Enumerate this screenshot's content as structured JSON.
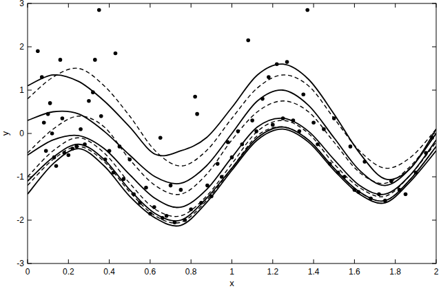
{
  "chart_data": {
    "type": "scatter",
    "x_label": "x",
    "y_label": "y",
    "xlim": [
      0,
      2
    ],
    "ylim": [
      -3,
      3
    ],
    "xticks": [
      0,
      0.2,
      0.4,
      0.6,
      0.8,
      1,
      1.2,
      1.4,
      1.6,
      1.8,
      2
    ],
    "yticks": [
      -3,
      -2,
      -1,
      0,
      1,
      2,
      3
    ],
    "grid": false,
    "series": [
      {
        "type": "scatter",
        "marker": "circle",
        "color": "#000000",
        "x": [
          0.05,
          0.07,
          0.08,
          0.09,
          0.1,
          0.11,
          0.12,
          0.13,
          0.14,
          0.16,
          0.17,
          0.18,
          0.2,
          0.22,
          0.24,
          0.26,
          0.28,
          0.3,
          0.32,
          0.33,
          0.35,
          0.36,
          0.38,
          0.4,
          0.42,
          0.43,
          0.45,
          0.47,
          0.5,
          0.52,
          0.55,
          0.58,
          0.6,
          0.62,
          0.65,
          0.66,
          0.68,
          0.7,
          0.72,
          0.75,
          0.77,
          0.8,
          0.82,
          0.83,
          0.85,
          0.88,
          0.9,
          0.93,
          0.95,
          0.98,
          1.0,
          1.03,
          1.05,
          1.08,
          1.1,
          1.12,
          1.15,
          1.18,
          1.2,
          1.22,
          1.25,
          1.27,
          1.3,
          1.33,
          1.35,
          1.37,
          1.4,
          1.42,
          1.45,
          1.48,
          1.5,
          1.52,
          1.55,
          1.58,
          1.6,
          1.62,
          1.65,
          1.68,
          1.72,
          1.75,
          1.78,
          1.82,
          1.85,
          1.9,
          1.95,
          1.98
        ],
        "values": [
          1.9,
          1.3,
          0.25,
          -0.4,
          0.45,
          0.7,
          0.0,
          -0.55,
          -0.75,
          1.7,
          0.35,
          -0.45,
          -0.5,
          -0.35,
          -0.3,
          0.1,
          -0.25,
          0.75,
          0.95,
          1.7,
          2.85,
          0.4,
          -0.6,
          -0.4,
          -0.9,
          1.85,
          -0.3,
          -1.05,
          -0.6,
          -1.4,
          -1.6,
          -1.25,
          -1.85,
          -1.7,
          -0.1,
          -1.95,
          -1.9,
          -1.2,
          -2.05,
          -1.3,
          -2.0,
          -1.75,
          0.85,
          0.45,
          -1.6,
          -1.2,
          -1.45,
          -0.7,
          -1.0,
          -0.2,
          -0.55,
          0.05,
          -0.25,
          2.15,
          0.3,
          0.05,
          0.8,
          1.3,
          0.2,
          1.6,
          0.35,
          1.65,
          0.3,
          0.05,
          0.9,
          2.85,
          0.25,
          -0.25,
          0.1,
          -0.7,
          0.35,
          -0.9,
          -1.0,
          -0.3,
          -1.3,
          -1.35,
          -0.65,
          -1.5,
          -1.4,
          -1.55,
          -1.1,
          -1.3,
          -1.4,
          -0.9,
          -0.45,
          -0.1
        ]
      },
      {
        "type": "line",
        "line_style": "solid",
        "color": "#000000",
        "x": [
          0,
          0.125,
          0.25,
          0.375,
          0.5,
          0.625,
          0.75,
          0.875,
          1,
          1.125,
          1.25,
          1.375,
          1.5,
          1.625,
          1.75,
          1.875,
          2
        ],
        "values": [
          1.1,
          1.35,
          1.2,
          0.75,
          0.15,
          -0.48,
          -0.4,
          -0.1,
          0.6,
          1.35,
          1.6,
          1.25,
          0.45,
          -0.45,
          -1.05,
          -0.8,
          0.1
        ]
      },
      {
        "type": "line",
        "line_style": "solid",
        "color": "#000000",
        "x": [
          0,
          0.125,
          0.25,
          0.375,
          0.5,
          0.625,
          0.75,
          0.875,
          1,
          1.125,
          1.25,
          1.375,
          1.5,
          1.625,
          1.75,
          1.875,
          2
        ],
        "values": [
          0.3,
          0.5,
          0.45,
          0.05,
          -0.5,
          -1.0,
          -1.15,
          -0.75,
          0.0,
          0.75,
          1.0,
          0.65,
          -0.1,
          -0.85,
          -1.2,
          -0.8,
          0.0
        ]
      },
      {
        "type": "line",
        "line_style": "solid",
        "color": "#000000",
        "x": [
          0,
          0.125,
          0.25,
          0.375,
          0.5,
          0.625,
          0.75,
          0.875,
          1,
          1.125,
          1.25,
          1.375,
          1.5,
          1.625,
          1.75,
          1.875,
          2
        ],
        "values": [
          -0.5,
          -0.15,
          -0.05,
          -0.35,
          -0.95,
          -1.5,
          -1.7,
          -1.3,
          -0.55,
          0.15,
          0.35,
          0.05,
          -0.6,
          -1.2,
          -1.4,
          -0.95,
          -0.15
        ]
      },
      {
        "type": "line",
        "line_style": "solid",
        "color": "#000000",
        "x": [
          0,
          0.125,
          0.25,
          0.375,
          0.5,
          0.625,
          0.75,
          0.875,
          1,
          1.125,
          1.25,
          1.375,
          1.5,
          1.625,
          1.75,
          1.875,
          2
        ],
        "values": [
          -1.1,
          -0.55,
          -0.25,
          -0.6,
          -1.3,
          -1.85,
          -2.0,
          -1.5,
          -0.8,
          -0.1,
          0.15,
          -0.15,
          -0.8,
          -1.35,
          -1.55,
          -1.05,
          -0.3
        ]
      },
      {
        "type": "line",
        "line_style": "solid",
        "color": "#000000",
        "x": [
          0,
          0.125,
          0.25,
          0.375,
          0.5,
          0.625,
          0.75,
          0.875,
          1,
          1.125,
          1.25,
          1.375,
          1.5,
          1.625,
          1.75,
          1.875,
          2
        ],
        "values": [
          -1.4,
          -0.7,
          -0.35,
          -0.75,
          -1.45,
          -1.95,
          -2.12,
          -1.6,
          -0.85,
          -0.15,
          0.1,
          -0.2,
          -0.85,
          -1.4,
          -1.6,
          -1.1,
          -0.4
        ]
      },
      {
        "type": "line",
        "line_style": "dashed",
        "color": "#000000",
        "x": [
          0,
          0.125,
          0.25,
          0.375,
          0.5,
          0.625,
          0.75,
          0.875,
          1,
          1.125,
          1.25,
          1.375,
          1.5,
          1.625,
          1.75,
          1.875,
          2
        ],
        "values": [
          0.8,
          1.3,
          1.5,
          1.1,
          0.4,
          -0.4,
          -0.75,
          -0.4,
          0.35,
          1.05,
          1.35,
          1.1,
          0.35,
          -0.4,
          -0.8,
          -0.55,
          0.1
        ]
      },
      {
        "type": "line",
        "line_style": "dashed",
        "color": "#000000",
        "x": [
          0,
          0.125,
          0.25,
          0.375,
          0.5,
          0.625,
          0.75,
          0.875,
          1,
          1.125,
          1.25,
          1.375,
          1.5,
          1.625,
          1.75,
          1.875,
          2
        ],
        "values": [
          -0.45,
          0.1,
          0.4,
          0.15,
          -0.6,
          -1.2,
          -1.4,
          -0.95,
          -0.15,
          0.5,
          0.75,
          0.5,
          -0.2,
          -0.9,
          -1.15,
          -0.75,
          0.0
        ]
      },
      {
        "type": "line",
        "line_style": "dashed",
        "color": "#000000",
        "x": [
          0,
          0.125,
          0.25,
          0.375,
          0.5,
          0.625,
          0.75,
          0.875,
          1,
          1.125,
          1.25,
          1.375,
          1.5,
          1.625,
          1.75,
          1.875,
          2
        ],
        "values": [
          -1.0,
          -0.4,
          -0.1,
          -0.45,
          -1.15,
          -1.75,
          -1.9,
          -1.45,
          -0.7,
          0.05,
          0.3,
          0.0,
          -0.7,
          -1.25,
          -1.45,
          -0.95,
          -0.2
        ]
      },
      {
        "type": "line",
        "line_style": "dashed",
        "color": "#000000",
        "x": [
          0,
          0.125,
          0.25,
          0.375,
          0.5,
          0.625,
          0.75,
          0.875,
          1,
          1.125,
          1.25,
          1.375,
          1.5,
          1.625,
          1.75,
          1.875,
          2
        ],
        "values": [
          -1.2,
          -0.6,
          -0.3,
          -0.65,
          -1.35,
          -1.9,
          -2.05,
          -1.55,
          -0.8,
          -0.05,
          0.15,
          -0.15,
          -0.8,
          -1.35,
          -1.55,
          -1.05,
          -0.3
        ]
      }
    ]
  }
}
